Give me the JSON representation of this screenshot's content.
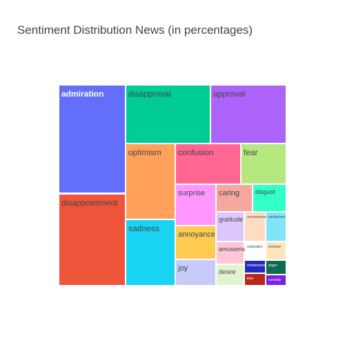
{
  "chart_data": {
    "type": "treemap",
    "title": "Sentiment Distribution News (in percentages)",
    "items": [
      {
        "label": "admiration",
        "value": 13.9,
        "color": "#636efa",
        "text_color": "#ffffff"
      },
      {
        "label": "disappointment",
        "value": 13.9,
        "color": "#ef553b",
        "text_color": "#444444"
      },
      {
        "label": "disapproval",
        "value": 8.3,
        "color": "#00cc96",
        "text_color": "#444444"
      },
      {
        "label": "approval",
        "value": 7.5,
        "color": "#ab63fa",
        "text_color": "#444444"
      },
      {
        "label": "optimism",
        "value": 5.9,
        "color": "#ffa15a",
        "text_color": "#444444"
      },
      {
        "label": "sadness",
        "value": 5.5,
        "color": "#19d3f3",
        "text_color": "#444444"
      },
      {
        "label": "confusion",
        "value": 4.7,
        "color": "#ff6692",
        "text_color": "#444444"
      },
      {
        "label": "fear",
        "value": 3.1,
        "color": "#b6e880",
        "text_color": "#444444"
      },
      {
        "label": "surprise",
        "value": 2.6,
        "color": "#ff97ff",
        "text_color": "#444444"
      },
      {
        "label": "annoyance",
        "value": 1.9,
        "color": "#fecb52",
        "text_color": "#444444"
      },
      {
        "label": "joy",
        "value": 1.5,
        "color": "#c6cbfa",
        "text_color": "#444444"
      },
      {
        "label": "caring",
        "value": 1.6,
        "color": "#f6a89e",
        "text_color": "#444444"
      },
      {
        "label": "disgust",
        "value": 1.5,
        "color": "#33ffc9",
        "text_color": "#444444"
      },
      {
        "label": "gratitude",
        "value": 1.1,
        "color": "#dcc6fb",
        "text_color": "#444444"
      },
      {
        "label": "amusement",
        "value": 0.7,
        "color": "#ffc6d6",
        "text_color": "#444444"
      },
      {
        "label": "desire",
        "value": 0.8,
        "color": "#e2f3cf",
        "text_color": "#444444"
      },
      {
        "label": "nervousness",
        "value": 0.8,
        "color": "#ffdcc1",
        "text_color": "#444444"
      },
      {
        "label": "excitement",
        "value": 0.8,
        "color": "#80e5f9",
        "text_color": "#444444"
      },
      {
        "label": "realization",
        "value": 0.6,
        "color": "#ffffff",
        "text_color": "#444444"
      },
      {
        "label": "remorse",
        "value": 0.6,
        "color": "#ffe4bd",
        "text_color": "#444444"
      },
      {
        "label": "embarrassment",
        "value": 0.4,
        "color": "#1f2bbf",
        "text_color": "#ffffff"
      },
      {
        "label": "anger",
        "value": 0.4,
        "color": "#0e6b4f",
        "text_color": "#ffffff"
      },
      {
        "label": "love",
        "value": 0.3,
        "color": "#b8281a",
        "text_color": "#ffffff"
      },
      {
        "label": "curiosity",
        "value": 0.3,
        "color": "#7d1ee6",
        "text_color": "#ffffff"
      }
    ]
  }
}
